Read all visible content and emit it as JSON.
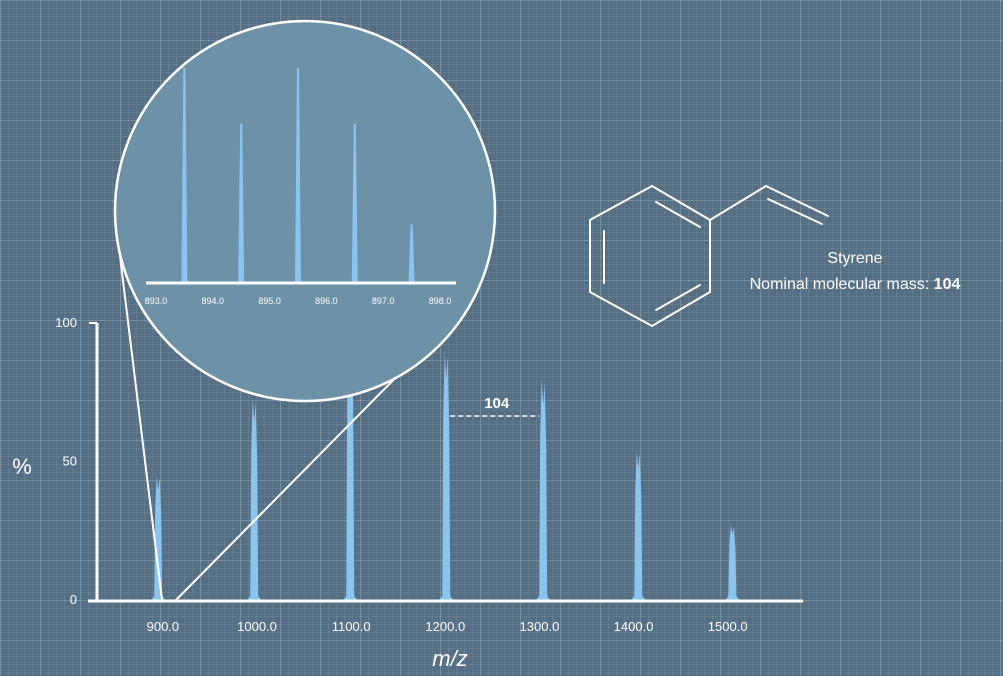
{
  "chart_data": {
    "type": "bar",
    "xlabel": "m/z",
    "ylabel": "%",
    "xlim": [
      830,
      1580
    ],
    "ylim": [
      0,
      100
    ],
    "x_ticks": [
      "900.0",
      "1000.0",
      "1100.0",
      "1200.0",
      "1300.0",
      "1400.0",
      "1500.0"
    ],
    "y_ticks": [
      "0",
      "50",
      "100"
    ],
    "peaks": [
      {
        "mz": 895,
        "intensity": 45
      },
      {
        "mz": 997,
        "intensity": 73
      },
      {
        "mz": 1099,
        "intensity": 100
      },
      {
        "mz": 1201,
        "intensity": 90
      },
      {
        "mz": 1304,
        "intensity": 80
      },
      {
        "mz": 1405,
        "intensity": 54
      },
      {
        "mz": 1505,
        "intensity": 27
      }
    ],
    "spacing_annotation": {
      "label": "104",
      "from_mz": 1201,
      "to_mz": 1304
    },
    "zoom_inset": {
      "x_ticks": [
        "893.0",
        "894.0",
        "895.0",
        "896.0",
        "897.0",
        "898.0"
      ],
      "xlim": [
        893,
        898
      ],
      "peaks": [
        {
          "mz": 893.5,
          "intensity": 100
        },
        {
          "mz": 894.5,
          "intensity": 74
        },
        {
          "mz": 895.5,
          "intensity": 100
        },
        {
          "mz": 896.5,
          "intensity": 74
        },
        {
          "mz": 897.5,
          "intensity": 27
        }
      ]
    }
  },
  "molecule": {
    "name": "Styrene",
    "mass_label": "Nominal molecular mass: ",
    "mass_value": "104"
  },
  "colors": {
    "background": "#557085",
    "peak": "#8cc4f0",
    "inset_fill": "#6d91a6",
    "axis": "#ffffff"
  }
}
